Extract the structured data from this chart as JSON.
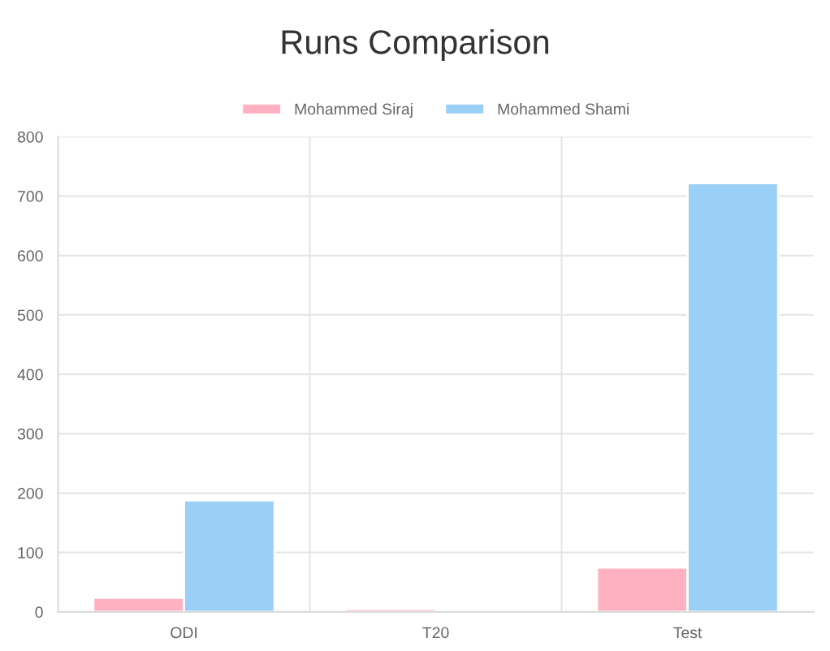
{
  "chart_data": {
    "type": "bar",
    "title": "Runs Comparison",
    "categories": [
      "ODI",
      "T20",
      "Test"
    ],
    "series": [
      {
        "name": "Mohammed Siraj",
        "color": "#ffb1c1",
        "values": [
          24,
          5,
          75
        ]
      },
      {
        "name": "Mohammed Shami",
        "color": "#9ad0f5",
        "values": [
          188,
          null,
          722
        ]
      }
    ],
    "ylim": [
      0,
      800
    ],
    "yticks": [
      0,
      100,
      200,
      300,
      400,
      500,
      600,
      700,
      800
    ],
    "grid": true,
    "legend": "top"
  }
}
